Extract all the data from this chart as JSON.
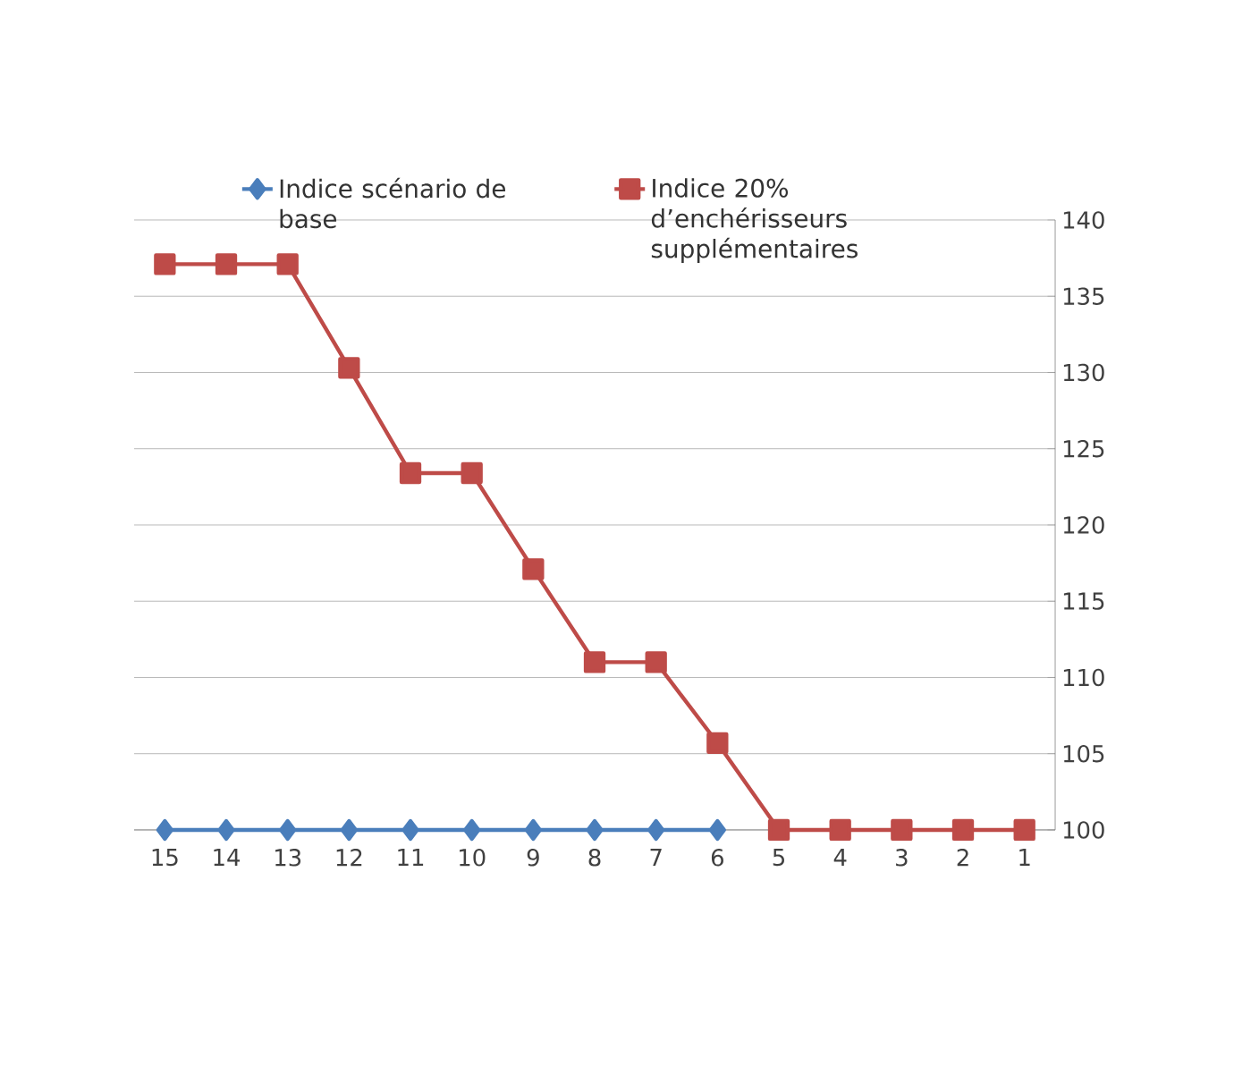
{
  "chart_data": {
    "type": "line",
    "categories": [
      "15",
      "14",
      "13",
      "12",
      "11",
      "10",
      "9",
      "8",
      "7",
      "6",
      "5",
      "4",
      "3",
      "2",
      "1"
    ],
    "series": [
      {
        "name": "Indice scénario de base",
        "color": "#4a7ebb",
        "marker": "diamond",
        "values": [
          100,
          100,
          100,
          100,
          100,
          100,
          100,
          100,
          100,
          100,
          null,
          null,
          null,
          null,
          null
        ]
      },
      {
        "name": "Indice 20% d’enchérisseurs supplémentaires",
        "color": "#be4b48",
        "marker": "square",
        "values": [
          137.1,
          137.1,
          137.1,
          130.3,
          123.4,
          123.4,
          117.1,
          111.0,
          111.0,
          105.7,
          100,
          100,
          100,
          100,
          100
        ]
      }
    ],
    "ylim": [
      100,
      140
    ],
    "yticks": [
      100,
      105,
      110,
      115,
      120,
      125,
      130,
      135,
      140
    ],
    "grid": "y",
    "legend": "top",
    "line_style": "solid"
  }
}
